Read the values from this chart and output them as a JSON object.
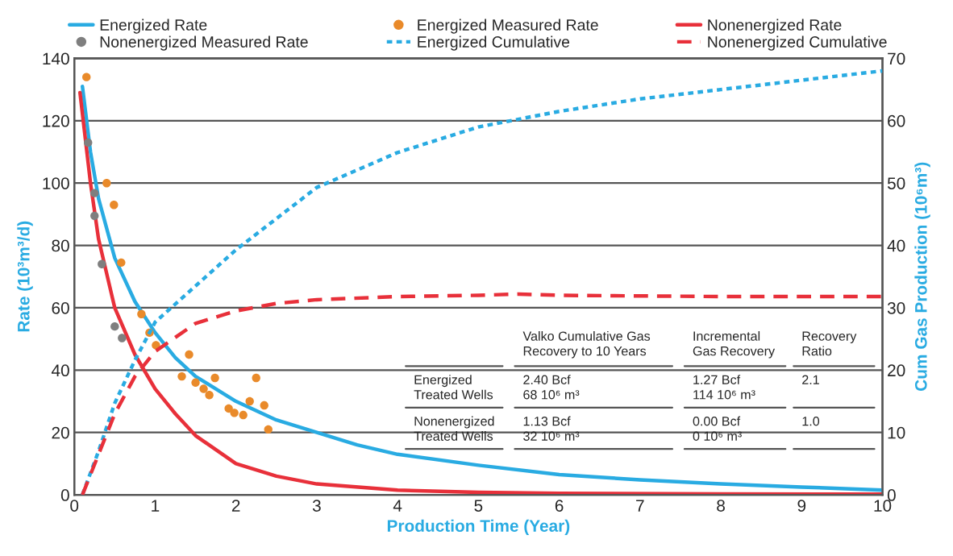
{
  "chart_data": {
    "type": "line",
    "xlabel": "Production Time (Year)",
    "ylabel": "Rate (10³m³/d)",
    "y2label": "Cum Gas Production (10⁶m³)",
    "xlim": [
      0,
      10
    ],
    "xticks": [
      0,
      1,
      2,
      3,
      4,
      5,
      6,
      7,
      8,
      9,
      10
    ],
    "ylim": [
      0,
      140
    ],
    "yticks": [
      0,
      20,
      40,
      60,
      80,
      100,
      120,
      140
    ],
    "y2lim": [
      0,
      70
    ],
    "y2ticks": [
      0,
      10,
      20,
      30,
      40,
      50,
      60,
      70
    ],
    "grid": "y",
    "legend": "top",
    "series": [
      {
        "name": "Energized Rate",
        "line_style": "solid",
        "color": "#29abe2",
        "x": [
          0.1,
          0.2,
          0.3,
          0.5,
          0.75,
          1,
          1.25,
          1.5,
          2,
          2.5,
          3,
          3.5,
          4,
          5,
          6,
          7,
          8,
          9,
          10
        ],
        "values": [
          131,
          110,
          95,
          76,
          62,
          52,
          44,
          38,
          30,
          24,
          20,
          16,
          13,
          9.5,
          6.5,
          4.8,
          3.5,
          2.5,
          1.5
        ]
      },
      {
        "name": "Energized Measured Rate",
        "type": "scatter",
        "marker": "circle",
        "color": "#e98a2a",
        "x": [
          0.15,
          0.4,
          0.49,
          0.58,
          0.83,
          0.93,
          1.01,
          1.33,
          1.42,
          1.5,
          1.6,
          1.67,
          1.74,
          1.91,
          1.98,
          2.09,
          2.17,
          2.25,
          2.35,
          2.4
        ],
        "values": [
          134,
          100,
          93,
          74.5,
          58,
          52,
          48,
          38,
          45,
          36,
          34,
          32,
          37.5,
          27.7,
          26.3,
          25.6,
          30,
          37.5,
          28.7,
          21
        ]
      },
      {
        "name": "Nonenergized Rate",
        "line_style": "solid",
        "color": "#e8303a",
        "x": [
          0.07,
          0.2,
          0.3,
          0.5,
          0.75,
          1,
          1.25,
          1.5,
          2,
          2.5,
          3,
          4,
          5,
          6,
          8,
          10
        ],
        "values": [
          129,
          100,
          82,
          60,
          45,
          34,
          26,
          19,
          10,
          6,
          3.5,
          1.5,
          0.8,
          0.5,
          0.3,
          0.2
        ]
      },
      {
        "name": "Nonenergized Measured Rate",
        "type": "scatter",
        "marker": "circle",
        "color": "#7f7f7f",
        "x": [
          0.17,
          0.25,
          0.25,
          0.34,
          0.5,
          0.59
        ],
        "values": [
          113,
          96.8,
          89.5,
          74,
          54,
          50.3
        ]
      },
      {
        "name": "Energized Cumulative",
        "line_style": "dotted",
        "axis": "y2",
        "color": "#29abe2",
        "x": [
          0.1,
          0.3,
          0.5,
          0.75,
          1,
          2,
          3,
          4,
          5,
          6,
          7,
          8,
          9,
          10
        ],
        "values": [
          0,
          7,
          14.7,
          21.6,
          27.7,
          39.3,
          49.3,
          54.9,
          59,
          61.5,
          63.5,
          65,
          66.5,
          68
        ]
      },
      {
        "name": "Nonenergized Cumulative",
        "line_style": "dashed",
        "axis": "y2",
        "color": "#e8303a",
        "x": [
          0.1,
          0.3,
          0.5,
          0.75,
          1,
          1.5,
          2,
          2.5,
          3,
          4,
          5,
          5.5,
          6,
          8,
          10
        ],
        "values": [
          0,
          6.5,
          13,
          19,
          23,
          27.5,
          29.5,
          30.7,
          31.3,
          31.8,
          32,
          32.2,
          32,
          31.8,
          31.8
        ]
      }
    ],
    "annotations": [
      "Valko Cumulative Gas\nRecovery to 10 Years",
      "Incremental\nGas Recovery",
      "Recovery\nRatio",
      "Energized\nTreated Wells",
      "2.40 Bcf\n68 10⁶ m³",
      "1.27 Bcf\n114 10⁶ m³",
      "2.1",
      "Nonenergized\nTreated Wells",
      "1.13 Bcf\n32 10⁶ m³",
      "0.00 Bcf\n0 10⁶ m³",
      "1.0"
    ]
  }
}
